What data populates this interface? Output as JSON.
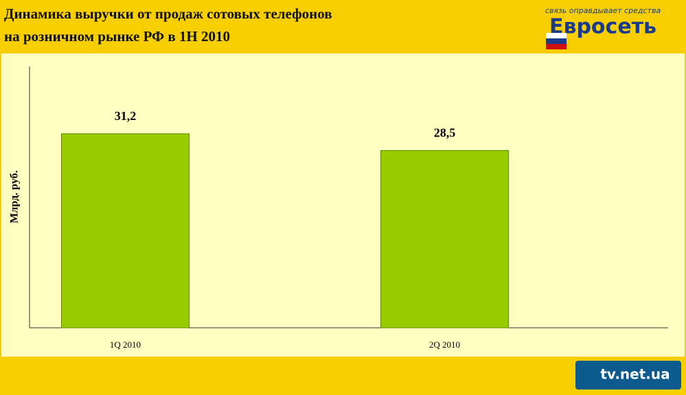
{
  "chart_data": {
    "type": "bar",
    "title_lines": [
      "Динамика выручки от продаж сотовых телефонов",
      "на розничном рынке РФ в 1H 2010"
    ],
    "y_label": "Млрд. руб.",
    "categories": [
      "1Q 2010",
      "2Q 2010"
    ],
    "values": [
      31.2,
      28.5
    ],
    "value_labels": [
      "31,2",
      "28,5"
    ],
    "color": "#99cc00",
    "ylim": [
      0,
      42
    ]
  },
  "logos": {
    "brand": "Евросеть",
    "slogan": "связь оправдывает средства",
    "source": "tv.net.ua"
  }
}
